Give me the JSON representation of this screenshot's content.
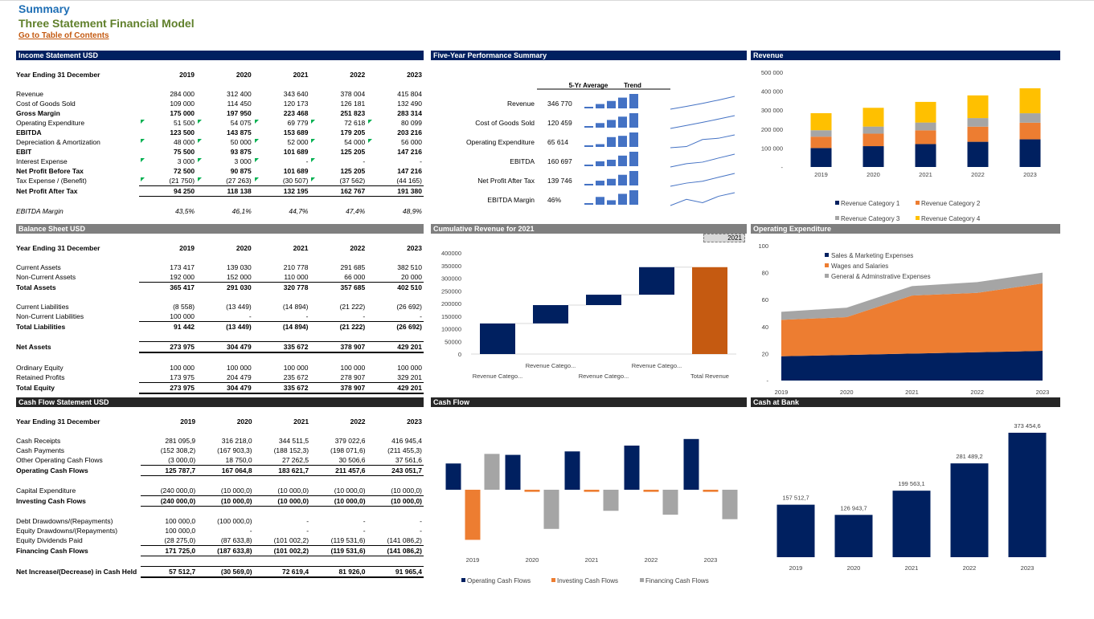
{
  "page": {
    "title": "Summary",
    "subtitle": "Three Statement Financial Model",
    "toc_link": "Go to Table of Contents"
  },
  "income": {
    "header": "Income Statement  USD",
    "year_label": "Year Ending 31 December",
    "years": [
      "2019",
      "2020",
      "2021",
      "2022",
      "2023"
    ],
    "rows": [
      {
        "label": "Revenue",
        "vals": [
          "284 000",
          "312 400",
          "343 640",
          "378 004",
          "415 804"
        ],
        "style": "",
        "tri": [
          0,
          0,
          0,
          0,
          0
        ]
      },
      {
        "label": "Cost of Goods Sold",
        "vals": [
          "109 000",
          "114 450",
          "120 173",
          "126 181",
          "132 490"
        ],
        "style": "",
        "tri": [
          0,
          0,
          0,
          0,
          0
        ]
      },
      {
        "label": "Gross Margin",
        "vals": [
          "175 000",
          "197 950",
          "223 468",
          "251 823",
          "283 314"
        ],
        "style": "bold",
        "tri": [
          0,
          0,
          0,
          0,
          0
        ]
      },
      {
        "label": "Operating Expenditure",
        "vals": [
          "51 500",
          "54 075",
          "69 779",
          "72 618",
          "80 099"
        ],
        "style": "",
        "tri": [
          1,
          1,
          1,
          1,
          1
        ]
      },
      {
        "label": "EBITDA",
        "vals": [
          "123 500",
          "143 875",
          "153 689",
          "179 205",
          "203 216"
        ],
        "style": "bold",
        "tri": [
          0,
          0,
          0,
          0,
          0
        ]
      },
      {
        "label": "Depreciation & Amortization",
        "vals": [
          "48 000",
          "50 000",
          "52 000",
          "54 000",
          "56 000"
        ],
        "style": "",
        "tri": [
          1,
          1,
          1,
          1,
          1
        ]
      },
      {
        "label": "EBIT",
        "vals": [
          "75 500",
          "93 875",
          "101 689",
          "125 205",
          "147 216"
        ],
        "style": "bold",
        "tri": [
          0,
          0,
          0,
          0,
          0
        ]
      },
      {
        "label": "Interest Expense",
        "vals": [
          "3 000",
          "3 000",
          "-",
          "-",
          "-"
        ],
        "style": "",
        "tri": [
          1,
          1,
          1,
          1,
          0
        ]
      },
      {
        "label": "Net Profit Before Tax",
        "vals": [
          "72 500",
          "90 875",
          "101 689",
          "125 205",
          "147 216"
        ],
        "style": "bold",
        "tri": [
          0,
          0,
          0,
          0,
          0
        ]
      },
      {
        "label": "Tax Expense / (Benefit)",
        "vals": [
          "(21 750)",
          "(27 263)",
          "(30 507)",
          "(37 562)",
          "(44 165)"
        ],
        "style": "",
        "tri": [
          1,
          1,
          1,
          1,
          0
        ]
      },
      {
        "label": "Net Profit After Tax",
        "vals": [
          "94 250",
          "118 138",
          "132 195",
          "162 767",
          "191 380"
        ],
        "style": "tb",
        "tri": [
          0,
          0,
          0,
          0,
          0
        ]
      },
      {
        "label": "",
        "vals": [
          "",
          "",
          "",
          "",
          ""
        ],
        "style": "sp",
        "tri": [
          0,
          0,
          0,
          0,
          0
        ]
      },
      {
        "label": "EBITDA Margin",
        "vals": [
          "43,5%",
          "46,1%",
          "44,7%",
          "47,4%",
          "48,9%"
        ],
        "style": "it",
        "tri": [
          0,
          0,
          0,
          0,
          0
        ]
      }
    ]
  },
  "balance": {
    "header": "Balance Sheet  USD",
    "year_label": "Year Ending 31 December",
    "years": [
      "2019",
      "2020",
      "2021",
      "2022",
      "2023"
    ],
    "rows": [
      {
        "label": "Current Assets",
        "vals": [
          "173 417",
          "139 030",
          "210 778",
          "291 685",
          "382 510"
        ],
        "style": ""
      },
      {
        "label": "Non-Current Assets",
        "vals": [
          "192 000",
          "152 000",
          "110 000",
          "66 000",
          "20 000"
        ],
        "style": ""
      },
      {
        "label": "Total Assets",
        "vals": [
          "365 417",
          "291 030",
          "320 778",
          "357 685",
          "402 510"
        ],
        "style": "boldtop"
      },
      {
        "label": "",
        "vals": [
          "",
          "",
          "",
          "",
          ""
        ],
        "style": "sp"
      },
      {
        "label": "Current Liabilities",
        "vals": [
          "(8 558)",
          "(13 449)",
          "(14 894)",
          "(21 222)",
          "(26 692)"
        ],
        "style": ""
      },
      {
        "label": "Non-Current Liabilities",
        "vals": [
          "100 000",
          "-",
          "-",
          "-",
          "-"
        ],
        "style": ""
      },
      {
        "label": "Total Liabilities",
        "vals": [
          "91 442",
          "(13 449)",
          "(14 894)",
          "(21 222)",
          "(26 692)"
        ],
        "style": "boldtop"
      },
      {
        "label": "",
        "vals": [
          "",
          "",
          "",
          "",
          ""
        ],
        "style": "sp"
      },
      {
        "label": "Net Assets",
        "vals": [
          "273 975",
          "304 479",
          "335 672",
          "378 907",
          "429 201"
        ],
        "style": "tt"
      },
      {
        "label": "",
        "vals": [
          "",
          "",
          "",
          "",
          ""
        ],
        "style": "sp"
      },
      {
        "label": "Ordinary Equity",
        "vals": [
          "100 000",
          "100 000",
          "100 000",
          "100 000",
          "100 000"
        ],
        "style": ""
      },
      {
        "label": "Retained Profits",
        "vals": [
          "173 975",
          "204 479",
          "235 672",
          "278 907",
          "329 201"
        ],
        "style": ""
      },
      {
        "label": "Total Equity",
        "vals": [
          "273 975",
          "304 479",
          "335 672",
          "378 907",
          "429 201"
        ],
        "style": "tt"
      }
    ]
  },
  "cashflow": {
    "header": "Cash Flow Statement  USD",
    "year_label": "Year Ending 31 December",
    "years": [
      "2019",
      "2020",
      "2021",
      "2022",
      "2023"
    ],
    "rows": [
      {
        "label": "Cash Receipts",
        "vals": [
          "281 095,9",
          "316 218,0",
          "344 511,5",
          "379 022,6",
          "416 945,4"
        ],
        "style": ""
      },
      {
        "label": "Cash Payments",
        "vals": [
          "(152 308,2)",
          "(167 903,3)",
          "(188 152,3)",
          "(198 071,6)",
          "(211 455,3)"
        ],
        "style": ""
      },
      {
        "label": "Other Operating Cash Flows",
        "vals": [
          "(3 000,0)",
          "18 750,0",
          "27 262,5",
          "30 506,6",
          "37 561,6"
        ],
        "style": ""
      },
      {
        "label": "Operating Cash Flows",
        "vals": [
          "125 787,7",
          "167 064,8",
          "183 621,7",
          "211 457,6",
          "243 051,7"
        ],
        "style": "tb"
      },
      {
        "label": "",
        "vals": [
          "",
          "",
          "",
          "",
          ""
        ],
        "style": "sp2"
      },
      {
        "label": "Capital Expenditure",
        "vals": [
          "(240 000,0)",
          "(10 000,0)",
          "(10 000,0)",
          "(10 000,0)",
          "(10 000,0)"
        ],
        "style": ""
      },
      {
        "label": "Investing Cash Flows",
        "vals": [
          "(240 000,0)",
          "(10 000,0)",
          "(10 000,0)",
          "(10 000,0)",
          "(10 000,0)"
        ],
        "style": "tb"
      },
      {
        "label": "",
        "vals": [
          "",
          "",
          "",
          "",
          ""
        ],
        "style": "sp"
      },
      {
        "label": "Debt Drawdowns/(Repayments)",
        "vals": [
          "100 000,0",
          "(100 000,0)",
          "-",
          "-",
          "-"
        ],
        "style": ""
      },
      {
        "label": "Equity Drawdowns/(Repayments)",
        "vals": [
          "100 000,0",
          "-",
          "-",
          "-",
          "-"
        ],
        "style": ""
      },
      {
        "label": "Equity Dividends Paid",
        "vals": [
          "(28 275,0)",
          "(87 633,8)",
          "(101 002,2)",
          "(119 531,6)",
          "(141 086,2)"
        ],
        "style": ""
      },
      {
        "label": "Financing Cash Flows",
        "vals": [
          "171 725,0",
          "(187 633,8)",
          "(101 002,2)",
          "(119 531,6)",
          "(141 086,2)"
        ],
        "style": "tb"
      },
      {
        "label": "",
        "vals": [
          "",
          "",
          "",
          "",
          ""
        ],
        "style": "sp"
      },
      {
        "label": "Net Increase/(Decrease) in Cash Held",
        "vals": [
          "57 512,7",
          "(30 569,0)",
          "72 619,4",
          "81 926,0",
          "91 965,4"
        ],
        "style": "tt"
      }
    ]
  },
  "five_year": {
    "header": "Five-Year Performance Summary",
    "col_avg": "5-Yr Average",
    "col_trend": "Trend",
    "rows": [
      {
        "label": "Revenue",
        "avg": "346 770",
        "series": [
          284000,
          312400,
          343640,
          378004,
          415804
        ]
      },
      {
        "label": "Cost of Goods Sold",
        "avg": "120 459",
        "series": [
          109000,
          114450,
          120173,
          126181,
          132490
        ]
      },
      {
        "label": "Operating Expenditure",
        "avg": "65 614",
        "series": [
          51500,
          54075,
          69779,
          72618,
          80099
        ]
      },
      {
        "label": "EBITDA",
        "avg": "160 697",
        "series": [
          123500,
          143875,
          153689,
          179205,
          203216
        ]
      },
      {
        "label": "Net Profit After Tax",
        "avg": "139 746",
        "series": [
          94250,
          118138,
          132195,
          162767,
          191380
        ]
      },
      {
        "label": "EBITDA Margin",
        "avg": "46%",
        "series": [
          43.5,
          46.1,
          44.7,
          47.4,
          48.9
        ]
      }
    ],
    "bar_color": "#4472c4"
  },
  "charts": {
    "revenue": {
      "header": "Revenue"
    },
    "cumulative": {
      "header": "Cumulative Revenue  for 2021",
      "selector": "2021"
    },
    "opex": {
      "header": "Operating Expenditure"
    },
    "cashflow": {
      "header": "Cash Flow"
    },
    "cash_bank": {
      "header": "Cash at Bank"
    }
  },
  "chart_data": [
    {
      "type": "bar",
      "stacked": true,
      "title": "Revenue",
      "categories": [
        "2019",
        "2020",
        "2021",
        "2022",
        "2023"
      ],
      "yticks": [
        "500 000",
        "400 000",
        "300 000",
        "200 000",
        "100 000",
        "-"
      ],
      "ylim": [
        0,
        500000
      ],
      "series": [
        {
          "name": "Revenue Category 1",
          "color": "#002060",
          "values": [
            100000,
            110000,
            121000,
            133000,
            146000
          ]
        },
        {
          "name": "Revenue Category 2",
          "color": "#ed7d31",
          "values": [
            60000,
            66000,
            72600,
            79900,
            87900
          ]
        },
        {
          "name": "Revenue Category 3",
          "color": "#a5a5a5",
          "values": [
            34000,
            37400,
            41100,
            45200,
            49700
          ]
        },
        {
          "name": "Revenue Category 4",
          "color": "#ffc000",
          "values": [
            90000,
            99000,
            108900,
            119800,
            131800
          ]
        }
      ],
      "legend": "bottom"
    },
    {
      "type": "waterfall",
      "title": "Cumulative Revenue  for 2021",
      "categories": [
        "Revenue Catego...",
        "Revenue Catego...",
        "Revenue Catego...",
        "Revenue Catego...",
        "Total Revenue"
      ],
      "yticks": [
        "400000",
        "350000",
        "300000",
        "250000",
        "200000",
        "150000",
        "100000",
        "50000",
        "0"
      ],
      "ylim": [
        0,
        400000
      ],
      "steps": [
        121000,
        72600,
        41100,
        108900
      ],
      "total": 343640,
      "colors": {
        "step": "#002060",
        "total": "#c55a11"
      }
    },
    {
      "type": "area",
      "stacked": true,
      "title": "Operating Expenditure",
      "x": [
        "2019",
        "2020",
        "2021",
        "2022",
        "2023"
      ],
      "yticks": [
        "100",
        "80",
        "60",
        "40",
        "20",
        "-"
      ],
      "ylim": [
        0,
        100
      ],
      "series": [
        {
          "name": "Sales & Marketing Expenses",
          "color": "#002060",
          "values": [
            18,
            19,
            20,
            21,
            22
          ]
        },
        {
          "name": "Wages and Salaries",
          "color": "#ed7d31",
          "values": [
            27,
            28,
            43,
            44,
            50
          ]
        },
        {
          "name": "General & Adminstrative Expenses",
          "color": "#a5a5a5",
          "values": [
            6,
            7,
            7,
            8,
            8
          ]
        }
      ],
      "legend": "top-right"
    },
    {
      "type": "bar",
      "title": "Cash Flow",
      "categories": [
        "2019",
        "2020",
        "2021",
        "2022",
        "2023"
      ],
      "series": [
        {
          "name": "Operating Cash Flows",
          "color": "#002060",
          "values": [
            125787.7,
            167064.8,
            183621.7,
            211457.6,
            243051.7
          ]
        },
        {
          "name": "Investing Cash Flows",
          "color": "#ed7d31",
          "values": [
            -240000,
            -10000,
            -10000,
            -10000,
            -10000
          ]
        },
        {
          "name": "Financing Cash Flows",
          "color": "#a5a5a5",
          "values": [
            171725,
            -187633.8,
            -101002.2,
            -119531.6,
            -141086.2
          ]
        }
      ],
      "legend": "bottom"
    },
    {
      "type": "bar",
      "title": "Cash at Bank",
      "categories": [
        "2019",
        "2020",
        "2021",
        "2022",
        "2023"
      ],
      "values": [
        157512.7,
        126943.7,
        199563.1,
        281489.2,
        373454.6
      ],
      "labels": [
        "157 512,7",
        "126 943,7",
        "199 563,1",
        "281 489,2",
        "373 454,6"
      ],
      "color": "#002060"
    }
  ]
}
